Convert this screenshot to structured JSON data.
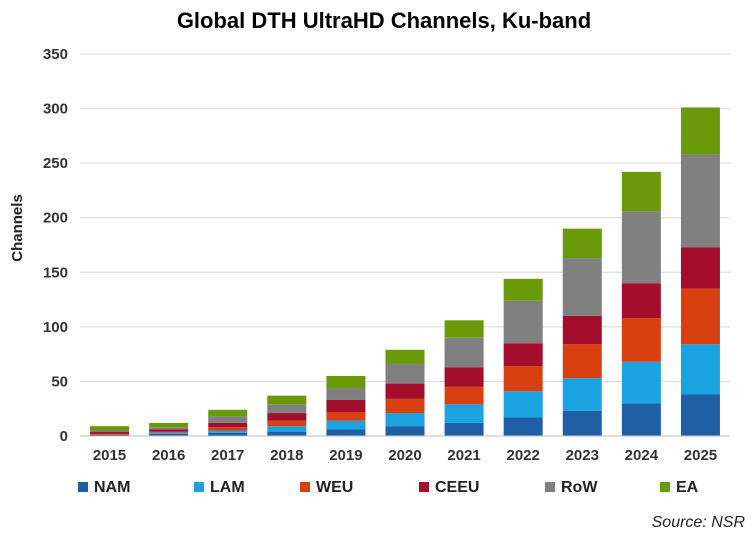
{
  "chart_data": {
    "type": "bar",
    "stacked": true,
    "title": "Global DTH UltraHD Channels, Ku-band",
    "ylabel": "Channels",
    "xlabel": "",
    "ylim": [
      0,
      350
    ],
    "yticks": [
      0,
      50,
      100,
      150,
      200,
      250,
      300,
      350
    ],
    "grid": true,
    "legend": "bottom",
    "categories": [
      "2015",
      "2016",
      "2017",
      "2018",
      "2019",
      "2020",
      "2021",
      "2022",
      "2023",
      "2024",
      "2025"
    ],
    "series": [
      {
        "name": "NAM",
        "color": "#1f5fa6",
        "values": [
          1,
          2,
          3,
          4,
          6,
          9,
          12,
          17,
          23,
          30,
          38
        ]
      },
      {
        "name": "LAM",
        "color": "#1aa3e0",
        "values": [
          0,
          1,
          2,
          5,
          8,
          12,
          17,
          24,
          30,
          38,
          46
        ]
      },
      {
        "name": "WEU",
        "color": "#d9400f",
        "values": [
          1,
          1,
          3,
          5,
          8,
          13,
          16,
          23,
          31,
          40,
          51
        ]
      },
      {
        "name": "CEEU",
        "color": "#a30e2c",
        "values": [
          2,
          2,
          4,
          7,
          11,
          14,
          18,
          21,
          26,
          32,
          38
        ]
      },
      {
        "name": "RoW",
        "color": "#808080",
        "values": [
          1,
          2,
          6,
          8,
          11,
          18,
          27,
          39,
          53,
          66,
          85
        ]
      },
      {
        "name": "EA",
        "color": "#6a9a0a",
        "values": [
          4,
          4,
          6,
          8,
          11,
          13,
          16,
          20,
          27,
          36,
          43
        ]
      }
    ]
  },
  "source": "Source: NSR"
}
